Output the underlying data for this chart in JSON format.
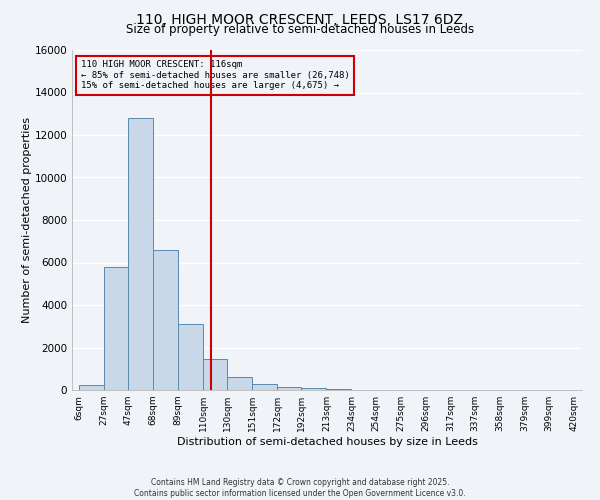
{
  "title1": "110, HIGH MOOR CRESCENT, LEEDS, LS17 6DZ",
  "title2": "Size of property relative to semi-detached houses in Leeds",
  "xlabel": "Distribution of semi-detached houses by size in Leeds",
  "ylabel": "Number of semi-detached properties",
  "bar_color": "#c8d8e8",
  "bar_edge_color": "#5a8ab0",
  "bar_left_edges": [
    6,
    27,
    47,
    68,
    89,
    110,
    130,
    151,
    172,
    192,
    213,
    234,
    254,
    275,
    296,
    317,
    337,
    358,
    379,
    399
  ],
  "bar_widths": [
    21,
    20,
    21,
    21,
    21,
    20,
    21,
    21,
    20,
    21,
    21,
    20,
    21,
    21,
    21,
    20,
    21,
    21,
    20,
    21
  ],
  "bar_heights": [
    250,
    5800,
    12800,
    6600,
    3100,
    1450,
    620,
    280,
    120,
    80,
    40,
    20,
    10,
    5,
    0,
    0,
    0,
    0,
    0,
    0
  ],
  "tick_labels": [
    "6sqm",
    "27sqm",
    "47sqm",
    "68sqm",
    "89sqm",
    "110sqm",
    "130sqm",
    "151sqm",
    "172sqm",
    "192sqm",
    "213sqm",
    "234sqm",
    "254sqm",
    "275sqm",
    "296sqm",
    "317sqm",
    "337sqm",
    "358sqm",
    "379sqm",
    "399sqm",
    "420sqm"
  ],
  "tick_positions": [
    6,
    27,
    47,
    68,
    89,
    110,
    130,
    151,
    172,
    192,
    213,
    234,
    254,
    275,
    296,
    317,
    337,
    358,
    379,
    399,
    420
  ],
  "vline_x": 116,
  "vline_color": "#cc0000",
  "ylim": [
    0,
    16000
  ],
  "yticks": [
    0,
    2000,
    4000,
    6000,
    8000,
    10000,
    12000,
    14000,
    16000
  ],
  "annotation_title": "110 HIGH MOOR CRESCENT: 116sqm",
  "annotation_line1": "← 85% of semi-detached houses are smaller (26,748)",
  "annotation_line2": "15% of semi-detached houses are larger (4,675) →",
  "annotation_box_color": "#cc0000",
  "footnote1": "Contains HM Land Registry data © Crown copyright and database right 2025.",
  "footnote2": "Contains public sector information licensed under the Open Government Licence v3.0.",
  "bg_color": "#f0f4f8",
  "grid_color": "#ffffff",
  "title1_fontsize": 10,
  "title2_fontsize": 8.5
}
